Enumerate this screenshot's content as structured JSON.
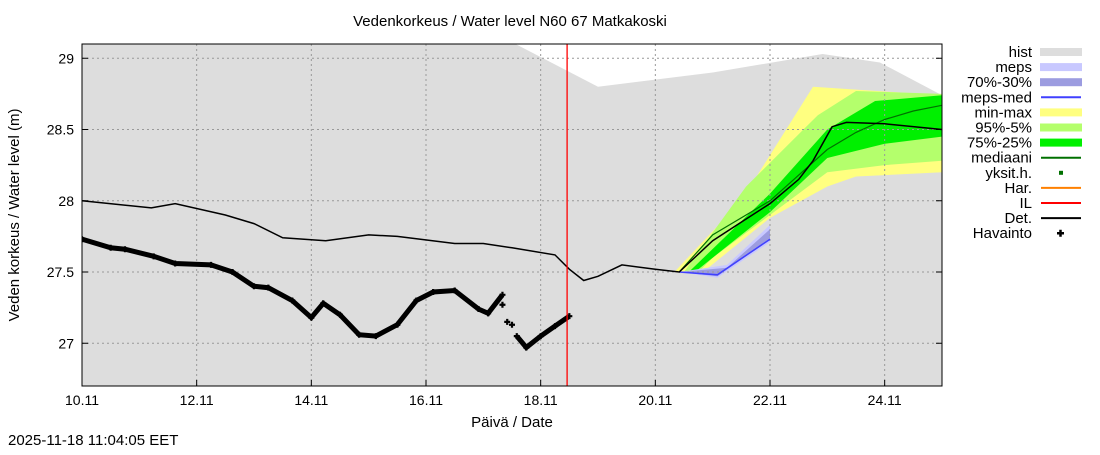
{
  "chart_data": {
    "type": "line",
    "title": "Vedenkorkeus / Water level   N60 67 Matkakoski",
    "xlabel": "Päivä / Date",
    "ylabel": "Veden korkeus / Water level (m)",
    "timestamp": "2025-11-18 11:04:05 EET",
    "xlim": [
      "2025-11-10 00:00",
      "2025-11-25 00:00"
    ],
    "ylim": [
      26.7,
      29.1
    ],
    "x_ticks": [
      {
        "t": "2025-11-10 00:00",
        "label": "10.11"
      },
      {
        "t": "2025-11-12 00:00",
        "label": "12.11"
      },
      {
        "t": "2025-11-14 00:00",
        "label": "14.11"
      },
      {
        "t": "2025-11-16 00:00",
        "label": "16.11"
      },
      {
        "t": "2025-11-18 00:00",
        "label": "18.11"
      },
      {
        "t": "2025-11-20 00:00",
        "label": "20.11"
      },
      {
        "t": "2025-11-22 00:00",
        "label": "22.11"
      },
      {
        "t": "2025-11-24 00:00",
        "label": "24.11"
      }
    ],
    "y_ticks": [
      {
        "v": 27,
        "label": "27"
      },
      {
        "v": 27.5,
        "label": "27.5"
      },
      {
        "v": 28,
        "label": "28"
      },
      {
        "v": 28.5,
        "label": "28.5"
      },
      {
        "v": 29,
        "label": "29"
      }
    ],
    "grid": true,
    "legend_placement": "right",
    "colors": {
      "hist": "#dddddd",
      "meps": "#c8c8ff",
      "p70_30": "#9c9ce0",
      "meps_med": "#4040ff",
      "minmax": "#ffff80",
      "p95_5": "#b4ff6c",
      "p75_25": "#00f000",
      "mediaani": "#007000",
      "yksit": "#007000",
      "har": "#ff8000",
      "il": "#ff0000",
      "det": "#000000",
      "havainto": "#000000"
    },
    "legend": [
      {
        "key": "hist",
        "label": "hist",
        "kind": "band"
      },
      {
        "key": "meps",
        "label": "meps",
        "kind": "band"
      },
      {
        "key": "p70_30",
        "label": "70%-30%",
        "kind": "band"
      },
      {
        "key": "meps_med",
        "label": "meps-med",
        "kind": "line"
      },
      {
        "key": "minmax",
        "label": "min-max",
        "kind": "band"
      },
      {
        "key": "p95_5",
        "label": "95%-5%",
        "kind": "band"
      },
      {
        "key": "p75_25",
        "label": "75%-25%",
        "kind": "band"
      },
      {
        "key": "mediaani",
        "label": "mediaani",
        "kind": "line"
      },
      {
        "key": "yksit",
        "label": "yksit.h.",
        "kind": "dot"
      },
      {
        "key": "har",
        "label": "Har.",
        "kind": "line"
      },
      {
        "key": "il",
        "label": "IL",
        "kind": "line"
      },
      {
        "key": "det",
        "label": "Det.",
        "kind": "line"
      },
      {
        "key": "havainto",
        "label": "Havainto",
        "kind": "cross"
      }
    ],
    "il_time": "2025-11-18 11:04",
    "hist_upper": [
      [
        "2025-11-10 00:00",
        29.2
      ],
      [
        "2025-11-17 02:00",
        29.2
      ],
      [
        "2025-11-19 00:00",
        28.8
      ],
      [
        "2025-11-21 00:00",
        28.9
      ],
      [
        "2025-11-22 22:00",
        29.03
      ],
      [
        "2025-11-23 22:00",
        28.97
      ],
      [
        "2025-11-25 00:00",
        28.74
      ]
    ],
    "minmax": {
      "upper": [
        [
          "2025-11-20 08:00",
          27.5
        ],
        [
          "2025-11-21 12:00",
          28.0
        ],
        [
          "2025-11-22 18:00",
          28.8
        ],
        [
          "2025-11-25 00:00",
          28.74
        ]
      ],
      "lower": [
        [
          "2025-11-25 00:00",
          28.2
        ],
        [
          "2025-11-23 12:00",
          28.17
        ],
        [
          "2025-11-23 00:00",
          28.1
        ],
        [
          "2025-11-22 00:00",
          27.88
        ],
        [
          "2025-11-20 20:00",
          27.5
        ]
      ]
    },
    "p95_5": {
      "upper": [
        [
          "2025-11-20 12:00",
          27.5
        ],
        [
          "2025-11-21 14:00",
          28.1
        ],
        [
          "2025-11-22 20:00",
          28.6
        ],
        [
          "2025-11-23 12:00",
          28.77
        ],
        [
          "2025-11-25 00:00",
          28.75
        ]
      ],
      "lower": [
        [
          "2025-11-25 00:00",
          28.28
        ],
        [
          "2025-11-24 00:00",
          28.25
        ],
        [
          "2025-11-23 00:00",
          28.2
        ],
        [
          "2025-11-22 00:00",
          27.9
        ],
        [
          "2025-11-21 00:00",
          27.6
        ],
        [
          "2025-11-20 18:00",
          27.5
        ]
      ]
    },
    "p75_25": {
      "upper": [
        [
          "2025-11-20 14:00",
          27.5
        ],
        [
          "2025-11-22 00:00",
          28.05
        ],
        [
          "2025-11-23 00:00",
          28.5
        ],
        [
          "2025-11-23 20:00",
          28.7
        ],
        [
          "2025-11-25 00:00",
          28.74
        ]
      ],
      "lower": [
        [
          "2025-11-25 00:00",
          28.45
        ],
        [
          "2025-11-24 00:00",
          28.4
        ],
        [
          "2025-11-23 00:00",
          28.3
        ],
        [
          "2025-11-22 00:00",
          27.92
        ],
        [
          "2025-11-21 00:00",
          27.6
        ],
        [
          "2025-11-20 18:00",
          27.52
        ]
      ]
    },
    "meps": {
      "upper": [
        [
          "2025-11-20 10:00",
          27.5
        ],
        [
          "2025-11-21 06:00",
          27.55
        ],
        [
          "2025-11-22 00:00",
          27.83
        ]
      ],
      "lower": [
        [
          "2025-11-22 00:00",
          27.71
        ],
        [
          "2025-11-21 02:00",
          27.46
        ],
        [
          "2025-11-20 10:00",
          27.5
        ]
      ]
    },
    "p70_30": {
      "upper": [
        [
          "2025-11-20 10:00",
          27.5
        ],
        [
          "2025-11-21 06:00",
          27.53
        ],
        [
          "2025-11-22 00:00",
          27.8
        ]
      ],
      "lower": [
        [
          "2025-11-22 00:00",
          27.73
        ],
        [
          "2025-11-21 02:00",
          27.47
        ],
        [
          "2025-11-20 10:00",
          27.5
        ]
      ]
    },
    "meps_med": [
      [
        "2025-11-20 10:00",
        27.5
      ],
      [
        "2025-11-21 02:00",
        27.48
      ],
      [
        "2025-11-22 00:00",
        27.73
      ]
    ],
    "mediaani": [
      [
        "2025-11-20 10:00",
        27.5
      ],
      [
        "2025-11-21 00:00",
        27.76
      ],
      [
        "2025-11-22 00:00",
        28.0
      ],
      [
        "2025-11-23 00:00",
        28.36
      ],
      [
        "2025-11-23 12:00",
        28.48
      ],
      [
        "2025-11-24 00:00",
        28.57
      ],
      [
        "2025-11-24 12:00",
        28.63
      ],
      [
        "2025-11-25 00:00",
        28.67
      ]
    ],
    "det": [
      [
        "2025-11-10 00:00",
        28.0
      ],
      [
        "2025-11-11 05:00",
        27.95
      ],
      [
        "2025-11-11 15:00",
        27.98
      ],
      [
        "2025-11-12 12:00",
        27.9
      ],
      [
        "2025-11-13 00:00",
        27.84
      ],
      [
        "2025-11-13 12:00",
        27.74
      ],
      [
        "2025-11-14 06:00",
        27.72
      ],
      [
        "2025-11-15 00:00",
        27.76
      ],
      [
        "2025-11-15 12:00",
        27.75
      ],
      [
        "2025-11-16 12:00",
        27.7
      ],
      [
        "2025-11-17 00:00",
        27.7
      ],
      [
        "2025-11-17 12:00",
        27.67
      ],
      [
        "2025-11-18 06:00",
        27.62
      ],
      [
        "2025-11-18 12:00",
        27.52
      ],
      [
        "2025-11-18 18:00",
        27.44
      ],
      [
        "2025-11-19 00:00",
        27.47
      ],
      [
        "2025-11-19 10:00",
        27.55
      ],
      [
        "2025-11-20 00:00",
        27.52
      ],
      [
        "2025-11-20 10:00",
        27.5
      ],
      [
        "2025-11-21 00:00",
        27.72
      ],
      [
        "2025-11-21 12:00",
        27.85
      ],
      [
        "2025-11-22 00:00",
        27.98
      ],
      [
        "2025-11-22 12:00",
        28.15
      ],
      [
        "2025-11-22 18:00",
        28.28
      ],
      [
        "2025-11-23 02:00",
        28.52
      ],
      [
        "2025-11-23 08:00",
        28.55
      ],
      [
        "2025-11-24 00:00",
        28.54
      ],
      [
        "2025-11-25 00:00",
        28.5
      ]
    ],
    "havainto": [
      [
        "2025-11-10 00:00",
        27.73
      ],
      [
        "2025-11-10 12:00",
        27.67
      ],
      [
        "2025-11-10 18:00",
        27.66
      ],
      [
        "2025-11-11 06:00",
        27.61
      ],
      [
        "2025-11-11 15:00",
        27.56
      ],
      [
        "2025-11-12 06:00",
        27.55
      ],
      [
        "2025-11-12 15:00",
        27.5
      ],
      [
        "2025-11-13 00:00",
        27.4
      ],
      [
        "2025-11-13 06:00",
        27.39
      ],
      [
        "2025-11-13 16:00",
        27.3
      ],
      [
        "2025-11-14 00:00",
        27.18
      ],
      [
        "2025-11-14 05:00",
        27.28
      ],
      [
        "2025-11-14 12:00",
        27.2
      ],
      [
        "2025-11-14 20:00",
        27.06
      ],
      [
        "2025-11-15 03:00",
        27.05
      ],
      [
        "2025-11-15 12:00",
        27.13
      ],
      [
        "2025-11-15 20:00",
        27.3
      ],
      [
        "2025-11-16 03:00",
        27.36
      ],
      [
        "2025-11-16 12:00",
        27.37
      ],
      [
        "2025-11-16 22:00",
        27.24
      ],
      [
        "2025-11-17 02:00",
        27.21
      ],
      [
        "2025-11-17 08:00",
        27.34
      ]
    ],
    "havainto_late": [
      [
        "2025-11-17 08:00",
        27.27
      ],
      [
        "2025-11-17 10:00",
        27.15
      ],
      [
        "2025-11-17 12:00",
        27.13
      ],
      [
        "2025-11-17 14:00",
        27.05
      ],
      [
        "2025-11-17 18:00",
        26.97
      ],
      [
        "2025-11-18 00:00",
        27.05
      ],
      [
        "2025-11-18 06:00",
        27.12
      ],
      [
        "2025-11-18 12:00",
        27.19
      ]
    ]
  }
}
